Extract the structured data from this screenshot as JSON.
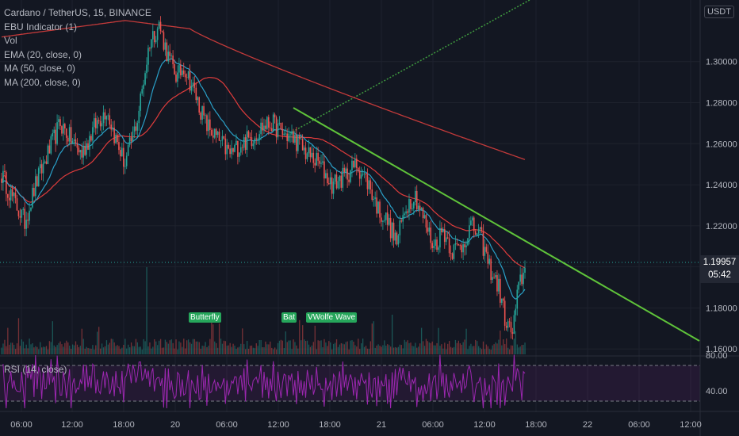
{
  "legend": {
    "symbol": "Cardano / TetherUS, 15, BINANCE",
    "indicators": [
      "EBU Indicator (1)",
      "Vol",
      "EMA (20, close, 0)",
      "MA (50, close, 0)",
      "MA (200, close, 0)"
    ]
  },
  "currency_badge": "USDT",
  "price_tag": {
    "price": "1.19957",
    "countdown": "05:42"
  },
  "rsi_label": "RSI (14, close)",
  "patterns": [
    "Butterfly",
    "Bat",
    "VWolfe Wave"
  ],
  "colors": {
    "background": "#131722",
    "up": "#26a69a",
    "down": "#ef5350",
    "ema": "#2aa0c8",
    "ma50": "#e03c3c",
    "ma200": "#c33a3a",
    "trendline_down": "#5fc33a",
    "trendline_up": "#3f9b3f",
    "rsi": "#9c27b0"
  },
  "chart_data": {
    "type": "candlestick",
    "x_tick_labels": [
      "06:00",
      "12:00",
      "18:00",
      "20",
      "06:00",
      "12:00",
      "18:00",
      "21",
      "06:00",
      "12:00",
      "18:00",
      "22",
      "06:00",
      "12:00"
    ],
    "y_tick_labels": [
      "1.30000",
      "1.28000",
      "1.26000",
      "1.24000",
      "1.22000",
      "1.20000",
      "1.18000",
      "1.16000"
    ],
    "y_range": [
      1.157,
      1.33
    ],
    "rsi_tick_labels": [
      "80.00",
      "40.00"
    ],
    "rsi_levels": [
      70,
      30
    ],
    "close_path": [
      {
        "t": 0,
        "p": 1.245
      },
      {
        "t": 8,
        "p": 1.232
      },
      {
        "t": 15,
        "p": 1.222
      },
      {
        "t": 22,
        "p": 1.24
      },
      {
        "t": 30,
        "p": 1.255
      },
      {
        "t": 38,
        "p": 1.27
      },
      {
        "t": 45,
        "p": 1.262
      },
      {
        "t": 52,
        "p": 1.255
      },
      {
        "t": 60,
        "p": 1.268
      },
      {
        "t": 68,
        "p": 1.277
      },
      {
        "t": 74,
        "p": 1.262
      },
      {
        "t": 80,
        "p": 1.25
      },
      {
        "t": 88,
        "p": 1.272
      },
      {
        "t": 96,
        "p": 1.31
      },
      {
        "t": 102,
        "p": 1.318
      },
      {
        "t": 108,
        "p": 1.302
      },
      {
        "t": 114,
        "p": 1.292
      },
      {
        "t": 118,
        "p": 1.298
      },
      {
        "t": 125,
        "p": 1.285
      },
      {
        "t": 132,
        "p": 1.27
      },
      {
        "t": 140,
        "p": 1.262
      },
      {
        "t": 148,
        "p": 1.255
      },
      {
        "t": 155,
        "p": 1.26
      },
      {
        "t": 162,
        "p": 1.263
      },
      {
        "t": 168,
        "p": 1.268
      },
      {
        "t": 175,
        "p": 1.27
      },
      {
        "t": 182,
        "p": 1.265
      },
      {
        "t": 190,
        "p": 1.262
      },
      {
        "t": 198,
        "p": 1.255
      },
      {
        "t": 206,
        "p": 1.25
      },
      {
        "t": 214,
        "p": 1.24
      },
      {
        "t": 222,
        "p": 1.244
      },
      {
        "t": 230,
        "p": 1.25
      },
      {
        "t": 238,
        "p": 1.24
      },
      {
        "t": 244,
        "p": 1.228
      },
      {
        "t": 250,
        "p": 1.222
      },
      {
        "t": 256,
        "p": 1.212
      },
      {
        "t": 262,
        "p": 1.23
      },
      {
        "t": 268,
        "p": 1.235
      },
      {
        "t": 274,
        "p": 1.222
      },
      {
        "t": 280,
        "p": 1.21
      },
      {
        "t": 286,
        "p": 1.218
      },
      {
        "t": 292,
        "p": 1.208
      },
      {
        "t": 298,
        "p": 1.21
      },
      {
        "t": 304,
        "p": 1.22
      },
      {
        "t": 310,
        "p": 1.215
      },
      {
        "t": 316,
        "p": 1.2
      },
      {
        "t": 322,
        "p": 1.19
      },
      {
        "t": 327,
        "p": 1.172
      },
      {
        "t": 331,
        "p": 1.168
      },
      {
        "t": 335,
        "p": 1.19
      },
      {
        "t": 339,
        "p": 1.2
      }
    ]
  }
}
